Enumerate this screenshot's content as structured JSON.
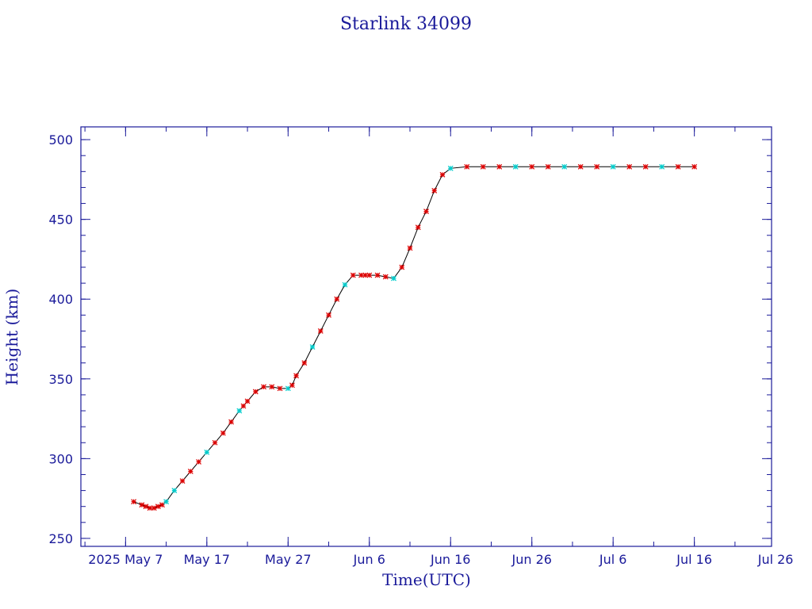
{
  "chart_data": {
    "type": "line",
    "title": "Starlink 34099",
    "xlabel": "Time(UTC)",
    "ylabel": "Height (km)",
    "x_start": "2025-05-07",
    "x_end": "2025-07-31",
    "xlim": [
      -5.5,
      79.5
    ],
    "ylim": [
      245,
      508
    ],
    "x_ticks": [
      {
        "label": "2025 May 7",
        "value": 0
      },
      {
        "label": "May 17",
        "value": 10
      },
      {
        "label": "May 27",
        "value": 20
      },
      {
        "label": "Jun  6",
        "value": 30
      },
      {
        "label": "Jun 16",
        "value": 40
      },
      {
        "label": "Jun 26",
        "value": 50
      },
      {
        "label": "Jul  6",
        "value": 60
      },
      {
        "label": "Jul 16",
        "value": 70
      },
      {
        "label": "Jul 26",
        "value": 80
      }
    ],
    "y_ticks": [
      250,
      300,
      350,
      400,
      450,
      500
    ],
    "grid": false,
    "colors": {
      "axis": "#1a1a9a",
      "line": "#000000",
      "marker_primary": "#dd0000",
      "marker_secondary": "#00cccc"
    },
    "series": [
      {
        "x": [
          1.0,
          2.0,
          2.5,
          3.0,
          3.5,
          4.0,
          4.5,
          5.0,
          6.0,
          7.0,
          8.0,
          9.0,
          10.0,
          11.0,
          12.0,
          13.0,
          14.0,
          14.5,
          15.0,
          16.0,
          17.0,
          18.0,
          19.0,
          20.0,
          20.5,
          21.0,
          22.0,
          23.0,
          24.0,
          25.0,
          26.0,
          27.0,
          28.0,
          29.0,
          29.5,
          30.0,
          31.0,
          32.0,
          33.0,
          34.0,
          35.0,
          36.0,
          37.0,
          38.0,
          39.0,
          40.0,
          42.0,
          44.0,
          46.0,
          48.0,
          50.0,
          52.0,
          54.0,
          56.0,
          58.0,
          60.0,
          62.0,
          64.0,
          66.0,
          68.0,
          70.0
        ],
        "y": [
          273,
          271,
          270,
          269,
          269,
          270,
          271,
          273,
          280,
          286,
          292,
          298,
          304,
          310,
          316,
          323,
          330,
          333,
          336,
          342,
          345,
          345,
          344,
          344,
          346,
          352,
          360,
          370,
          380,
          390,
          400,
          409,
          415,
          415,
          415,
          415,
          415,
          414,
          413,
          420,
          432,
          445,
          455,
          468,
          478,
          482,
          483,
          483,
          483,
          483,
          483,
          483,
          483,
          483,
          483,
          483,
          483,
          483,
          483,
          483,
          483
        ]
      }
    ]
  }
}
